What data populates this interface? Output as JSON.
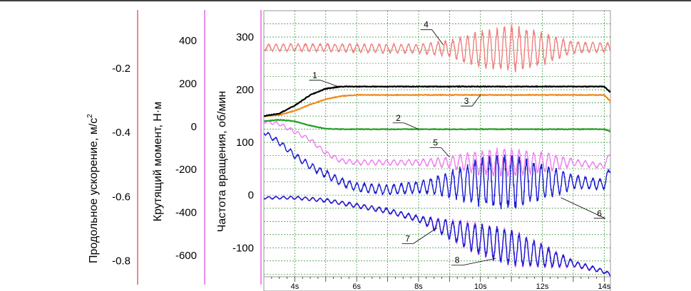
{
  "chart_data": {
    "type": "line",
    "x": {
      "tick_labels": [
        "4s",
        "6s",
        "8s",
        "10s",
        "12s",
        "14s"
      ],
      "range_seconds": [
        3,
        14.2
      ]
    },
    "y_axes": [
      {
        "id": "accel",
        "label": "Продольное ускорение, м/с",
        "label_superscript": "2",
        "ticks": [
          -0.2,
          -0.4,
          -0.6,
          -0.8
        ],
        "tick_labels": [
          "-0.2",
          "-0.4",
          "-0.6",
          "-0.8"
        ],
        "range": [
          -0.85,
          -0.02
        ],
        "color": "#e23a3a"
      },
      {
        "id": "torque",
        "label": "Крутящий момент, Н·м",
        "ticks": [
          400,
          200,
          0,
          -200,
          -400,
          -600
        ],
        "tick_labels": [
          "400",
          "200",
          "0",
          "-200",
          "-400",
          "-600"
        ],
        "range": [
          -700,
          540
        ],
        "color": "#e040e0"
      },
      {
        "id": "rpm",
        "label": "Частота вращения, об/мин",
        "ticks": [
          300,
          200,
          100,
          0,
          -100
        ],
        "tick_labels": [
          "300",
          "200",
          "100",
          "0",
          "-100"
        ],
        "range": [
          -155,
          350
        ],
        "color": "#e040e0"
      }
    ],
    "grid": true,
    "series": [
      {
        "label": "1",
        "color": "#000000",
        "axis": "rpm",
        "x": [
          3.0,
          3.5,
          4.0,
          4.5,
          5.0,
          5.5,
          6.0,
          8.0,
          10.0,
          12.0,
          14.0,
          14.2
        ],
        "y": [
          150,
          155,
          170,
          190,
          202,
          206,
          206,
          206,
          206,
          206,
          206,
          195
        ]
      },
      {
        "label": "2",
        "color": "#2aa02a",
        "axis": "rpm",
        "x": [
          3.0,
          3.5,
          4.0,
          4.5,
          5.0,
          5.5,
          6.0,
          8.0,
          10.0,
          12.0,
          14.0,
          14.2
        ],
        "y": [
          140,
          143,
          140,
          132,
          126,
          125,
          125,
          125,
          125,
          125,
          125,
          121
        ]
      },
      {
        "label": "3",
        "color": "#f08a1e",
        "axis": "rpm",
        "x": [
          3.0,
          3.5,
          4.0,
          4.5,
          5.0,
          5.5,
          6.0,
          8.0,
          10.0,
          12.0,
          14.0,
          14.2
        ],
        "y": [
          150,
          152,
          160,
          172,
          182,
          188,
          190,
          190,
          190,
          190,
          190,
          178
        ]
      },
      {
        "label": "4",
        "color": "#f08080",
        "axis": "rpm",
        "base_x": [
          3.0,
          5.0,
          7.0,
          9.0,
          10.0,
          11.0,
          12.0,
          13.0,
          14.2
        ],
        "base_y": [
          280,
          280,
          278,
          278,
          276,
          278,
          278,
          280,
          280
        ],
        "amp_x": [
          3.0,
          8.0,
          9.0,
          10.0,
          11.0,
          12.0,
          13.0,
          14.2
        ],
        "amp_y": [
          6,
          8,
          14,
          32,
          40,
          28,
          10,
          8
        ]
      },
      {
        "label": "5",
        "color": "#ee82ee",
        "axis": "rpm",
        "base_x": [
          3.0,
          3.5,
          4.0,
          4.5,
          5.0,
          5.5,
          6.0,
          8.0,
          9.0,
          10.0,
          11.0,
          12.0,
          13.0,
          14.0,
          14.2
        ],
        "base_y": [
          140,
          135,
          120,
          105,
          80,
          65,
          62,
          62,
          62,
          62,
          62,
          62,
          62,
          55,
          80
        ],
        "amp_x": [
          3.0,
          8.0,
          9.0,
          10.0,
          11.0,
          12.0,
          13.0,
          14.2
        ],
        "amp_y": [
          3,
          5,
          10,
          22,
          24,
          18,
          6,
          4
        ]
      },
      {
        "label": "6",
        "color": "#1a1ad0",
        "axis": "rpm",
        "base_x": [
          3.0,
          3.5,
          4.0,
          4.5,
          5.0,
          5.5,
          6.0,
          7.0,
          8.0,
          9.0,
          10.0,
          11.0,
          12.0,
          13.0,
          14.0,
          14.2
        ],
        "base_y": [
          120,
          100,
          75,
          55,
          40,
          25,
          15,
          10,
          15,
          20,
          25,
          25,
          25,
          25,
          20,
          50
        ],
        "amp_x": [
          3.0,
          8.0,
          9.0,
          10.0,
          11.0,
          12.0,
          13.0,
          14.2
        ],
        "amp_y": [
          4,
          10,
          22,
          42,
          48,
          32,
          12,
          8
        ]
      },
      {
        "label": "7",
        "color": "#ee82ee",
        "axis": "rpm",
        "base_x": [
          3.0,
          4.0,
          5.0,
          6.0,
          7.0,
          8.0,
          9.0,
          10.0,
          11.0,
          12.0,
          13.0,
          14.0,
          14.2
        ],
        "base_y": [
          -5,
          -5,
          -10,
          -20,
          -30,
          -45,
          -65,
          -85,
          -100,
          -115,
          -130,
          -145,
          -150
        ],
        "amp_x": [
          3.0,
          8.0,
          9.0,
          10.0,
          11.0,
          12.0,
          13.0,
          14.2
        ],
        "amp_y": [
          2,
          5,
          18,
          30,
          32,
          22,
          6,
          3
        ]
      },
      {
        "label": "8",
        "color": "#1a1ad0",
        "axis": "rpm",
        "base_x": [
          3.0,
          4.0,
          5.0,
          6.0,
          7.0,
          8.0,
          9.0,
          10.0,
          11.0,
          12.0,
          13.0,
          14.0,
          14.2
        ],
        "base_y": [
          -5,
          -5,
          -10,
          -20,
          -30,
          -45,
          -65,
          -85,
          -100,
          -115,
          -130,
          -145,
          -152
        ],
        "amp_x": [
          3.0,
          8.0,
          9.0,
          10.0,
          11.0,
          12.0,
          13.0,
          14.2
        ],
        "amp_y": [
          2,
          5,
          16,
          28,
          30,
          20,
          5,
          3
        ]
      }
    ]
  }
}
